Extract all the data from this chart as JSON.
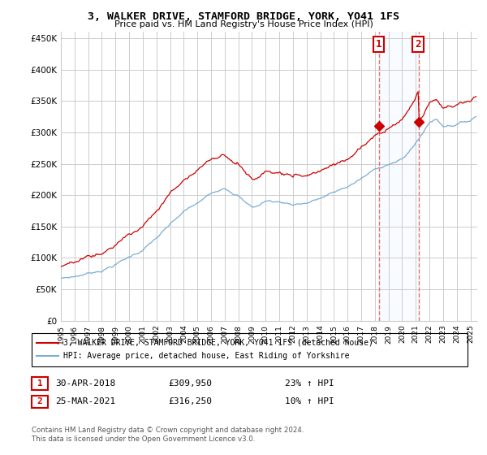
{
  "title": "3, WALKER DRIVE, STAMFORD BRIDGE, YORK, YO41 1FS",
  "subtitle": "Price paid vs. HM Land Registry's House Price Index (HPI)",
  "ylabel_ticks": [
    "£0",
    "£50K",
    "£100K",
    "£150K",
    "£200K",
    "£250K",
    "£300K",
    "£350K",
    "£400K",
    "£450K"
  ],
  "ytick_values": [
    0,
    50000,
    100000,
    150000,
    200000,
    250000,
    300000,
    350000,
    400000,
    450000
  ],
  "ylim": [
    0,
    460000
  ],
  "xlim_start": 1995.0,
  "xlim_end": 2025.5,
  "xtick_years": [
    1995,
    1996,
    1997,
    1998,
    1999,
    2000,
    2001,
    2002,
    2003,
    2004,
    2005,
    2006,
    2007,
    2008,
    2009,
    2010,
    2011,
    2012,
    2013,
    2014,
    2015,
    2016,
    2017,
    2018,
    2019,
    2020,
    2021,
    2022,
    2023,
    2024,
    2025
  ],
  "sale1_x": 2018.33,
  "sale1_y": 309950,
  "sale1_label": "1",
  "sale1_date": "30-APR-2018",
  "sale1_price": "£309,950",
  "sale1_hpi": "23% ↑ HPI",
  "sale2_x": 2021.23,
  "sale2_y": 316250,
  "sale2_label": "2",
  "sale2_date": "25-MAR-2021",
  "sale2_price": "£316,250",
  "sale2_hpi": "10% ↑ HPI",
  "legend_line1": "3, WALKER DRIVE, STAMFORD BRIDGE, YORK, YO41 1FS (detached house)",
  "legend_line2": "HPI: Average price, detached house, East Riding of Yorkshire",
  "footer": "Contains HM Land Registry data © Crown copyright and database right 2024.\nThis data is licensed under the Open Government Licence v3.0.",
  "red_color": "#cc0000",
  "blue_color": "#7aadd4",
  "sale_box_color": "#cc0000",
  "vline_color": "#e87070",
  "background_color": "#ffffff",
  "grid_color": "#cccccc",
  "shade_color": "#ddeeff"
}
